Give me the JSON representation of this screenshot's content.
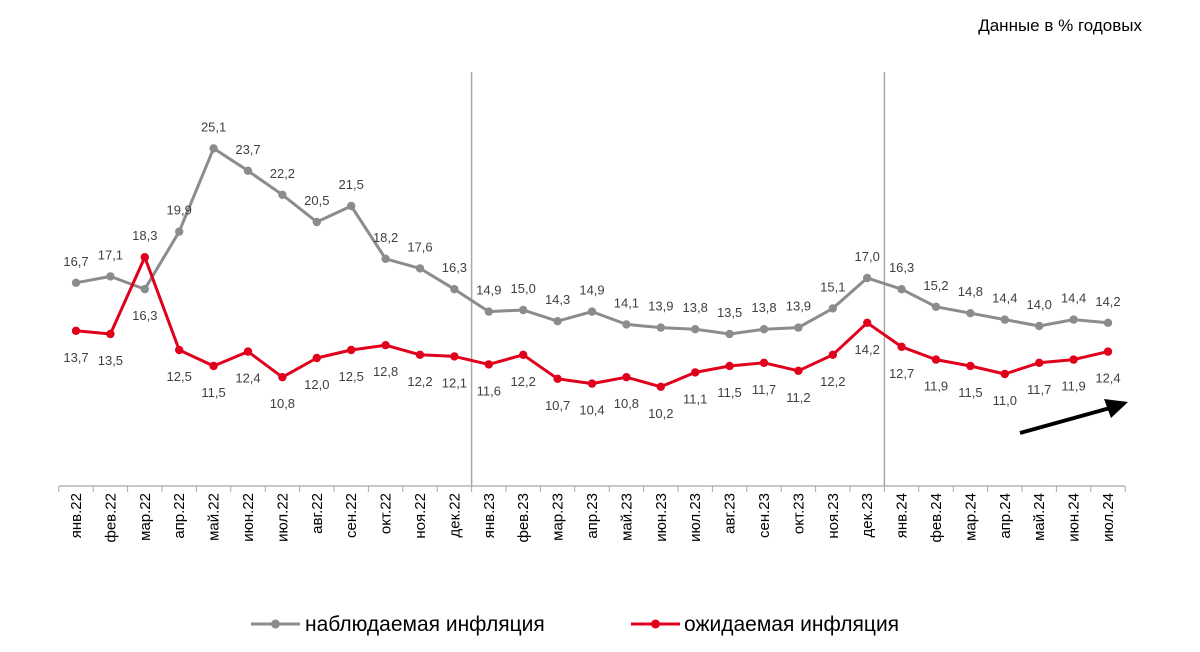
{
  "chart_data": {
    "type": "line",
    "unit_note": "Данные в  % годовых",
    "categories": [
      "янв.22",
      "фев.22",
      "мар.22",
      "апр.22",
      "май.22",
      "июн.22",
      "июл.22",
      "авг.22",
      "сен.22",
      "окт.22",
      "ноя.22",
      "дек.22",
      "янв.23",
      "фев.23",
      "мар.23",
      "апр.23",
      "май.23",
      "июн.23",
      "июл.23",
      "авг.23",
      "сен.23",
      "окт.23",
      "ноя.23",
      "дек.23",
      "янв.24",
      "фев.24",
      "мар.24",
      "апр.24",
      "май.24",
      "июн.24",
      "июл.24"
    ],
    "series": [
      {
        "name": "наблюдаемая  инфляция",
        "color": "#8c8c8c",
        "values": [
          16.7,
          17.1,
          16.3,
          19.9,
          25.1,
          23.7,
          22.2,
          20.5,
          21.5,
          18.2,
          17.6,
          16.3,
          14.9,
          15.0,
          14.3,
          14.9,
          14.1,
          13.9,
          13.8,
          13.5,
          13.8,
          13.9,
          15.1,
          17.0,
          16.3,
          15.2,
          14.8,
          14.4,
          14.0,
          14.4,
          14.2
        ],
        "labels": [
          "16,7",
          "17,1",
          "16,3",
          "19,9",
          "25,1",
          "23,7",
          "22,2",
          "20,5",
          "21,5",
          "18,2",
          "17,6",
          "16,3",
          "14,9",
          "15,0",
          "14,3",
          "14,9",
          "14,1",
          "13,9",
          "13,8",
          "13,5",
          "13,8",
          "13,9",
          "15,1",
          "17,0",
          "16,3",
          "15,2",
          "14,8",
          "14,4",
          "14,0",
          "14,4",
          "14,2"
        ]
      },
      {
        "name": "ожидаемая  инфляция",
        "color": "#e0001b",
        "values": [
          13.7,
          13.5,
          18.3,
          12.5,
          11.5,
          12.4,
          10.8,
          12.0,
          12.5,
          12.8,
          12.2,
          12.1,
          11.6,
          12.2,
          10.7,
          10.4,
          10.8,
          10.2,
          11.1,
          11.5,
          11.7,
          11.2,
          12.2,
          14.2,
          12.7,
          11.9,
          11.5,
          11.0,
          11.7,
          11.9,
          12.4
        ],
        "labels": [
          "13,7",
          "13,5",
          "18,3",
          "12,5",
          "11,5",
          "12,4",
          "10,8",
          "12,0",
          "12,5",
          "12,8",
          "12,2",
          "12,1",
          "11,6",
          "12,2",
          "10,7",
          "10,4",
          "10,8",
          "10,2",
          "11,1",
          "11,5",
          "11,7",
          "11,2",
          "12,2",
          "14,2",
          "12,7",
          "11,9",
          "11,5",
          "11,0",
          "11,7",
          "11,9",
          "12,4"
        ]
      }
    ],
    "ylim": [
      4,
      29
    ],
    "year_separators_after": [
      "дек.22",
      "дек.23"
    ],
    "trend_arrow": "up-right",
    "legend_position": "bottom-center"
  }
}
